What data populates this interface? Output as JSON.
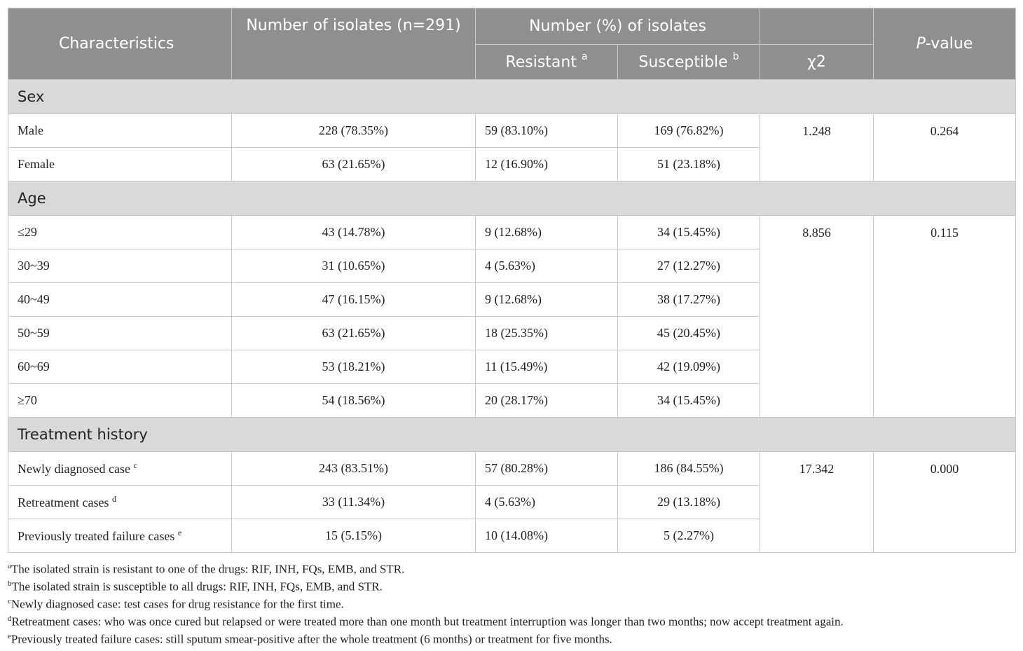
{
  "header": {
    "characteristics": "Characteristics",
    "number_isolates": "Number of isolates (n=291)",
    "number_percent": "Number (%) of isolates",
    "resistant": "Resistant",
    "resistant_sup": "a",
    "susceptible": "Susceptible",
    "susceptible_sup": "b",
    "chi2": "χ2",
    "p_italic": "P",
    "p_rest": "-value"
  },
  "sections": [
    {
      "title": "Sex",
      "chi2": "1.248",
      "p_value": "0.264",
      "rows": [
        {
          "label": "Male",
          "sup": "",
          "n": "228 (78.35%)",
          "resistant": "59 (83.10%)",
          "susceptible": "169 (76.82%)"
        },
        {
          "label": "Female",
          "sup": "",
          "n": "63 (21.65%)",
          "resistant": "12 (16.90%)",
          "susceptible": "51 (23.18%)"
        }
      ]
    },
    {
      "title": "Age",
      "chi2": "8.856",
      "p_value": "0.115",
      "rows": [
        {
          "label": "≤29",
          "sup": "",
          "n": "43 (14.78%)",
          "resistant": "9 (12.68%)",
          "susceptible": "34 (15.45%)"
        },
        {
          "label": "30~39",
          "sup": "",
          "n": "31 (10.65%)",
          "resistant": "4 (5.63%)",
          "susceptible": "27 (12.27%)"
        },
        {
          "label": "40~49",
          "sup": "",
          "n": "47 (16.15%)",
          "resistant": "9 (12.68%)",
          "susceptible": "38 (17.27%)"
        },
        {
          "label": "50~59",
          "sup": "",
          "n": "63 (21.65%)",
          "resistant": "18 (25.35%)",
          "susceptible": "45 (20.45%)"
        },
        {
          "label": "60~69",
          "sup": "",
          "n": "53 (18.21%)",
          "resistant": "11 (15.49%)",
          "susceptible": "42 (19.09%)"
        },
        {
          "label": "≥70",
          "sup": "",
          "n": "54 (18.56%)",
          "resistant": "20 (28.17%)",
          "susceptible": "34 (15.45%)"
        }
      ]
    },
    {
      "title": "Treatment history",
      "chi2": "17.342",
      "p_value": "0.000",
      "rows": [
        {
          "label": "Newly diagnosed case",
          "sup": "c",
          "n": "243 (83.51%)",
          "resistant": "57 (80.28%)",
          "susceptible": "186 (84.55%)"
        },
        {
          "label": "Retreatment cases",
          "sup": "d",
          "n": "33 (11.34%)",
          "resistant": "4 (5.63%)",
          "susceptible": "29 (13.18%)"
        },
        {
          "label": "Previously treated failure cases",
          "sup": "e",
          "n": "15 (5.15%)",
          "resistant": "10 (14.08%)",
          "susceptible": "5 (2.27%)"
        }
      ]
    }
  ],
  "footnotes": [
    {
      "sup": "a",
      "text": "The isolated strain is resistant to one of the drugs: RIF, INH, FQs, EMB, and STR."
    },
    {
      "sup": "b",
      "text": "The isolated strain is susceptible to all drugs: RIF, INH, FQs, EMB, and STR."
    },
    {
      "sup": "c",
      "text": "Newly diagnosed case: test cases for drug resistance for the first time."
    },
    {
      "sup": "d",
      "text": "Retreatment cases: who was once cured but relapsed or were treated more than one month but treatment interruption was longer than two months; now accept treatment again."
    },
    {
      "sup": "e",
      "text": "Previously treated failure cases: still sputum smear-positive after the whole treatment (6 months) or treatment for five months."
    }
  ]
}
